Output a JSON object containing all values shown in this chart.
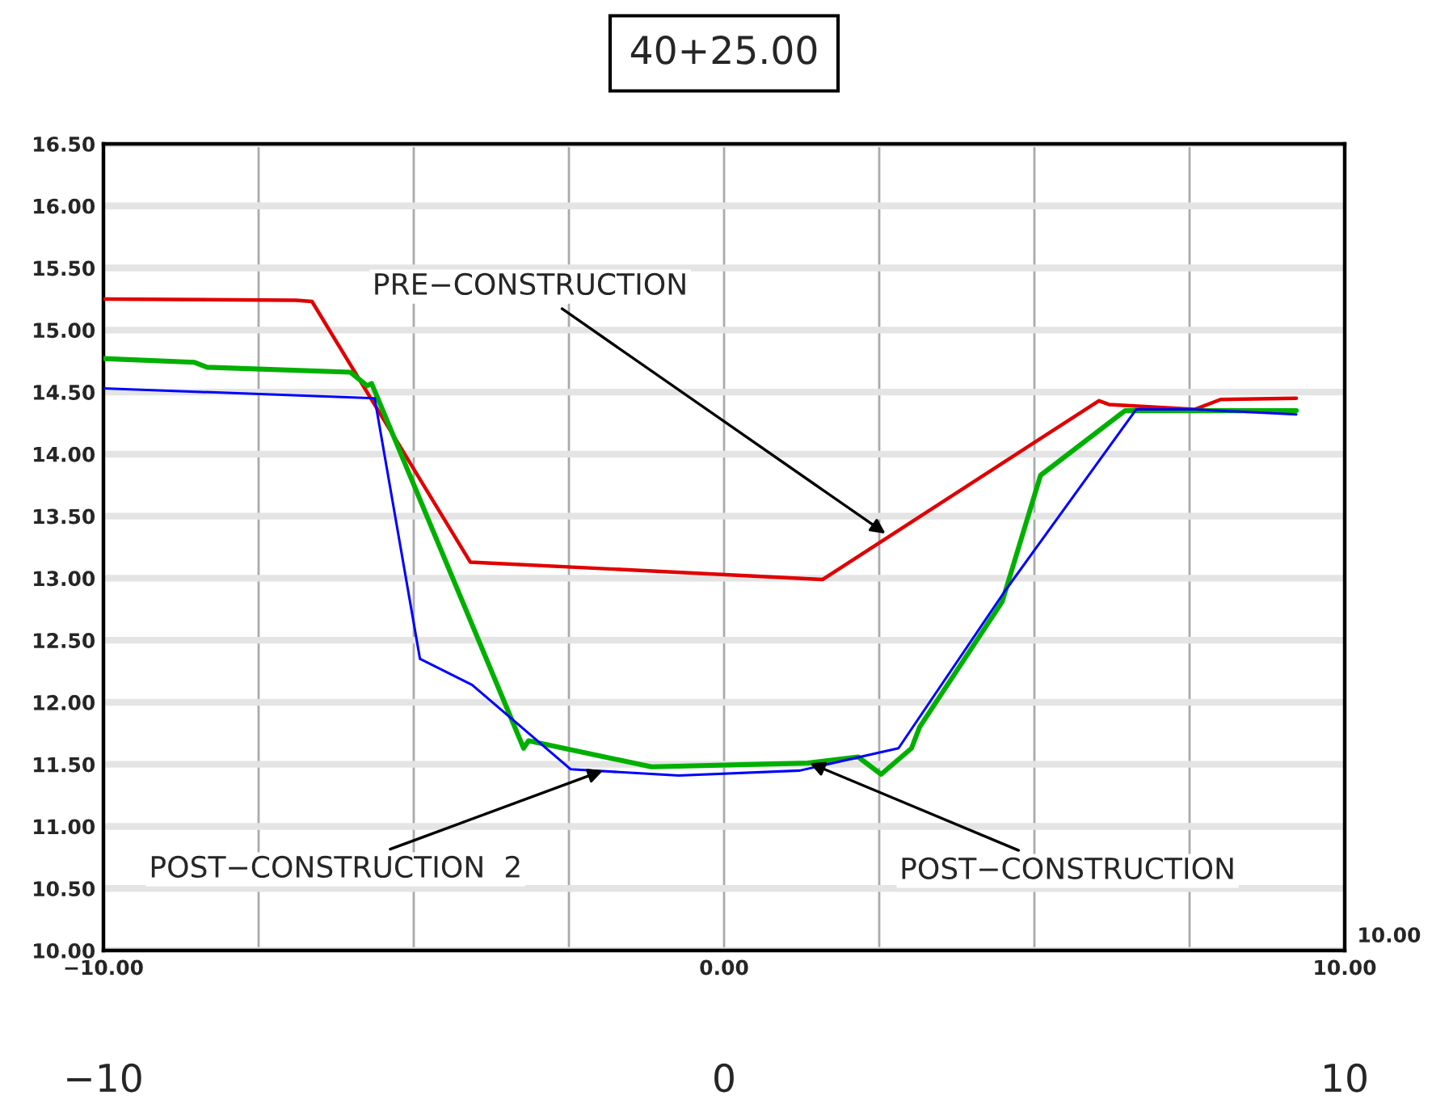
{
  "chart_data": {
    "type": "line",
    "title": "40+25.00",
    "xlim": [
      -10,
      10
    ],
    "xticks": [
      {
        "value": -10,
        "label": "−10.00"
      },
      {
        "value": -7.5,
        "label": null
      },
      {
        "value": -5,
        "label": null
      },
      {
        "value": -2.5,
        "label": null
      },
      {
        "value": 0,
        "label": "0.00"
      },
      {
        "value": 2.5,
        "label": null
      },
      {
        "value": 5,
        "label": null
      },
      {
        "value": 7.5,
        "label": null
      },
      {
        "value": 10,
        "label": "10.00"
      }
    ],
    "x2lim": [
      -10,
      10
    ],
    "x2ticks": [
      {
        "value": -10,
        "label": "−10"
      },
      0,
      10
    ],
    "ylim": [
      10,
      16.5
    ],
    "yticks": [
      {
        "value": 10,
        "label": "10.00"
      },
      {
        "value": 10.5,
        "label": "10.50"
      },
      {
        "value": 11,
        "label": "11.00"
      },
      {
        "value": 11.5,
        "label": "11.50"
      },
      {
        "value": 12,
        "label": "12.00"
      },
      {
        "value": 12.5,
        "label": "12.50"
      },
      {
        "value": 13,
        "label": "13.00"
      },
      {
        "value": 13.5,
        "label": "13.50"
      },
      {
        "value": 14,
        "label": "14.00"
      },
      {
        "value": 14.5,
        "label": "14.50"
      },
      {
        "value": 15,
        "label": "15.00"
      },
      {
        "value": 15.5,
        "label": "15.50"
      },
      {
        "value": 16,
        "label": "16.00"
      },
      {
        "value": 16.5,
        "label": "16.50"
      }
    ],
    "grid": true,
    "legend": false,
    "marker": "none",
    "line_style": "solid",
    "series": [
      {
        "color": "#e00000",
        "x": [
          -10,
          -6.9,
          -6.64,
          -4.09,
          1.59,
          6.04,
          6.2,
          7.58,
          8.0,
          9.22
        ],
        "values": [
          15.25,
          15.24,
          15.23,
          13.13,
          12.99,
          14.43,
          14.4,
          14.36,
          14.44,
          14.45
        ]
      },
      {
        "color": "#00b000",
        "x": [
          -10,
          -8.54,
          -8.33,
          -6.02,
          -5.75,
          -5.68,
          -3.23,
          -3.15,
          -1.17,
          1.35,
          2.16,
          2.53,
          3.02,
          3.15,
          4.48,
          5.1,
          6.46,
          9.22
        ],
        "values": [
          14.77,
          14.74,
          14.7,
          14.66,
          14.55,
          14.57,
          11.63,
          11.69,
          11.48,
          11.51,
          11.56,
          11.42,
          11.63,
          11.8,
          12.81,
          13.83,
          14.35,
          14.35
        ]
      },
      {
        "color": "#0000ff",
        "x": [
          -10,
          -5.63,
          -4.9,
          -4.06,
          -2.47,
          -0.73,
          1.22,
          2.81,
          4.53,
          6.64,
          7.58,
          9.22
        ],
        "values": [
          14.53,
          14.45,
          12.35,
          12.14,
          11.46,
          11.41,
          11.45,
          11.63,
          12.9,
          14.36,
          14.36,
          14.32
        ]
      }
    ],
    "annotations": [
      {
        "text": "PRE−CONSTRUCTION",
        "x": 2.6,
        "y": 13.36
      },
      {
        "text": "POST−CONSTRUCTION  2",
        "x": -1.95,
        "y": 11.45
      },
      {
        "text": "POST−CONSTRUCTION",
        "x": 1.38,
        "y": 11.51
      },
      "10.00"
    ]
  }
}
